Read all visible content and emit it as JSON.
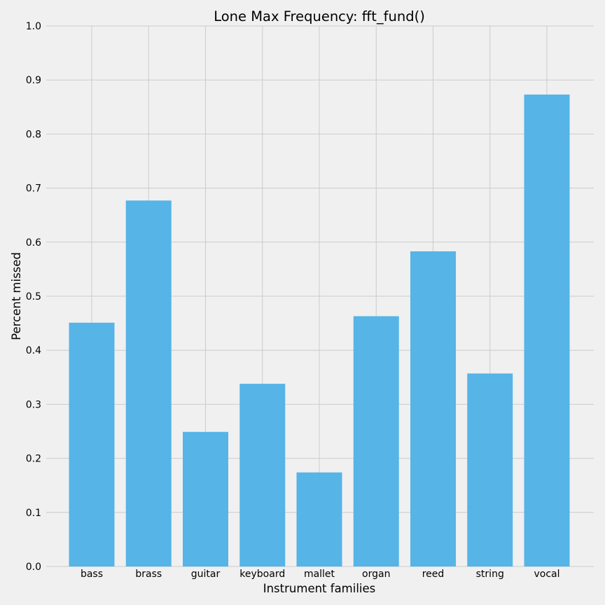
{
  "chart_data": {
    "type": "bar",
    "title": "Lone Max Frequency: fft_fund()",
    "xlabel": "Instrument families",
    "ylabel": "Percent missed",
    "categories": [
      "bass",
      "brass",
      "guitar",
      "keyboard",
      "mallet",
      "organ",
      "reed",
      "string",
      "vocal"
    ],
    "values": [
      0.451,
      0.677,
      0.249,
      0.338,
      0.174,
      0.463,
      0.583,
      0.357,
      0.873
    ],
    "ylim": [
      0.0,
      1.0
    ],
    "yticks": [
      "0.0",
      "0.1",
      "0.2",
      "0.3",
      "0.4",
      "0.5",
      "0.6",
      "0.7",
      "0.8",
      "0.9",
      "1.0"
    ],
    "grid": true,
    "bar_color": "#56b4e7",
    "background_color": "#f0f0f0",
    "grid_color": "#cbcbcb"
  }
}
